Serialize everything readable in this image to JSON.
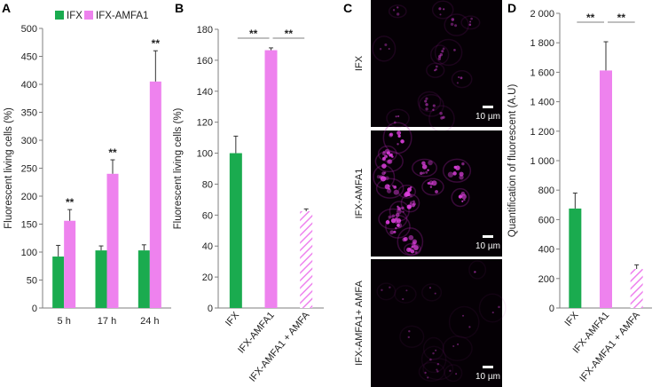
{
  "colors": {
    "ifx": "#1aab4f",
    "ifx_amfa1": "#ee82ee",
    "hatch": "#ee82ee",
    "axis": "#7f7f7f"
  },
  "chart_data": [
    {
      "panel": "A",
      "type": "bar",
      "categories": [
        "5 h",
        "17 h",
        "24 h"
      ],
      "series": [
        {
          "name": "IFX",
          "values": [
            92,
            103,
            103
          ],
          "errors": [
            20,
            8,
            10
          ]
        },
        {
          "name": "IFX-AMFA1",
          "values": [
            156,
            240,
            405
          ],
          "errors": [
            20,
            25,
            55
          ]
        }
      ],
      "ylabel": "Fluorescent living cells (%)",
      "ylim": [
        0,
        500
      ],
      "yticks": [
        "0",
        "50",
        "100",
        "150",
        "200",
        "250",
        "300",
        "350",
        "400",
        "450",
        "500"
      ],
      "significance": [
        "**",
        "**",
        "**"
      ],
      "legend": "top-left"
    },
    {
      "panel": "B",
      "type": "bar",
      "categories": [
        "IFX",
        "IFX-AMFA1",
        "IFX-AMFA1 + AMFA"
      ],
      "values": [
        100,
        166.5,
        62.5
      ],
      "errors": [
        11,
        1.5,
        1.5
      ],
      "patterns": [
        "solid",
        "solid",
        "hatched"
      ],
      "ylabel": "Fluorescent living cells (%)",
      "ylim": [
        0,
        180
      ],
      "yticks": [
        "0",
        "20",
        "40",
        "60",
        "80",
        "100",
        "120",
        "140",
        "160",
        "180"
      ],
      "significance": [
        "**",
        "**"
      ]
    },
    {
      "panel": "D",
      "type": "bar",
      "categories": [
        "IFX",
        "IFX-AMFA1",
        "IFX-AMFA1 + AMFA"
      ],
      "values": [
        675,
        1612,
        265
      ],
      "errors": [
        105,
        195,
        28
      ],
      "patterns": [
        "solid",
        "solid",
        "hatched"
      ],
      "ylabel": "Quantification of fluorescent (A.U)",
      "ylim": [
        0,
        2000
      ],
      "yticks": [
        "0",
        "200",
        "400",
        "600",
        "800",
        "1 000",
        "1 200",
        "1 400",
        "1 600",
        "1 800",
        "2 000"
      ],
      "significance": [
        "**",
        "**"
      ]
    }
  ],
  "micrographs": {
    "panel": "C",
    "labels": [
      "IFX",
      "IFX-AMFA1",
      "IFX-AMFA1+ AMFA"
    ],
    "scale_bar": "10 µm",
    "intensity": [
      0.35,
      1.0,
      0.12
    ]
  }
}
